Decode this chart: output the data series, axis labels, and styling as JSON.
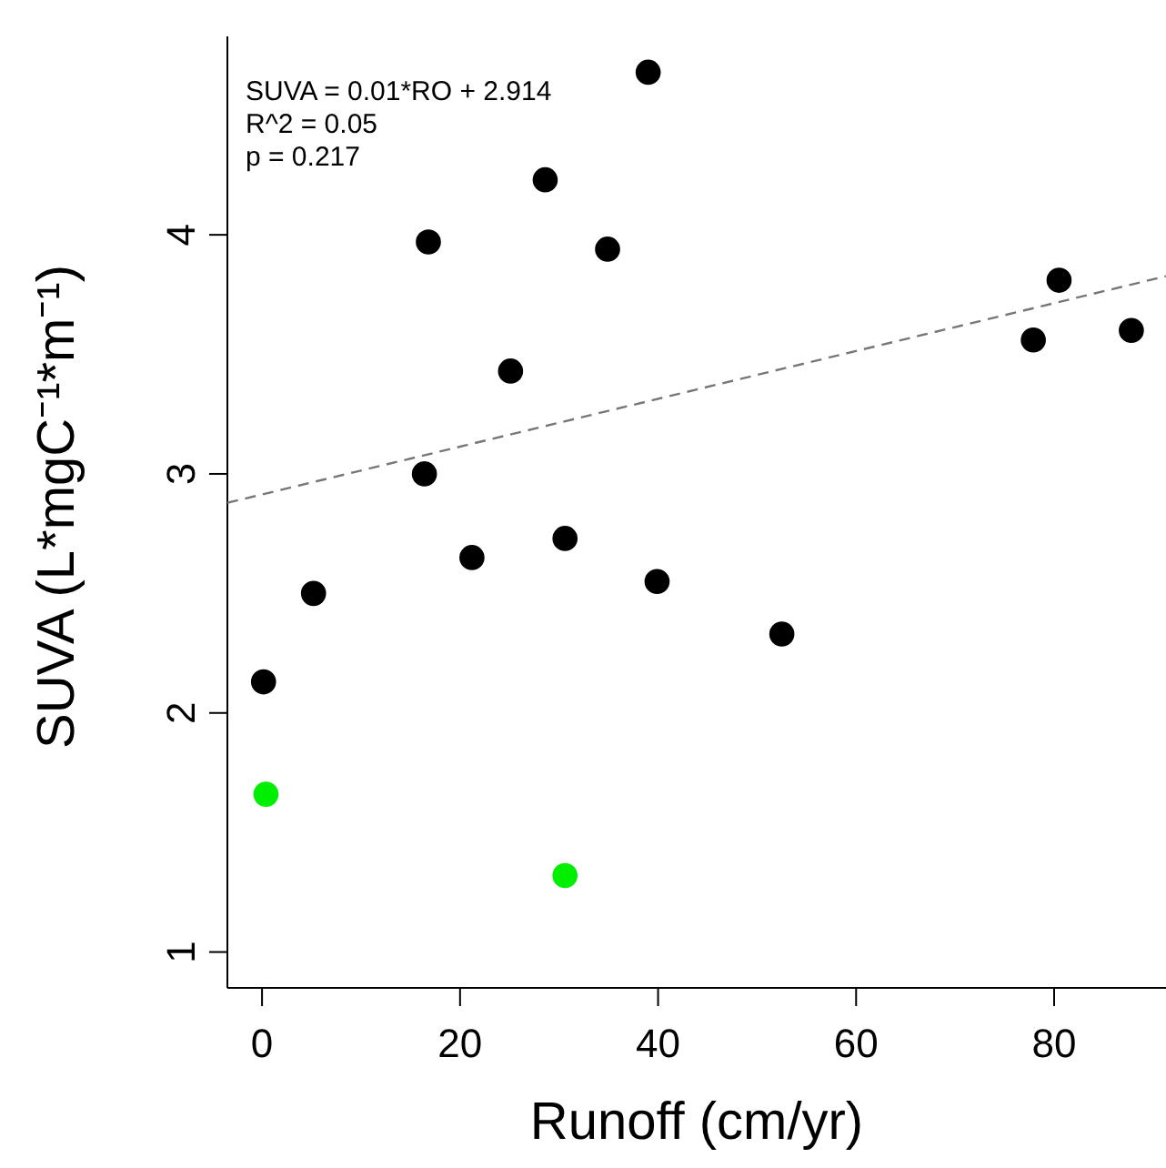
{
  "chart_data": {
    "type": "scatter",
    "xlabel": "Runoff (cm/yr)",
    "ylabel": "SUVA (L*mgC⁻¹*m⁻¹)",
    "annotations": [
      "SUVA = 0.01*RO + 2.914",
      "R^2 = 0.05",
      "p = 0.217"
    ],
    "xlim": [
      -3.5,
      91.3
    ],
    "xticks": [
      0,
      20,
      40,
      60,
      80
    ],
    "ylim": [
      0.85,
      4.83
    ],
    "yticks": [
      1,
      2,
      3,
      4
    ],
    "marker": "circle",
    "series": [
      {
        "color": "#000000",
        "x": [
          0.15,
          5.2,
          16.4,
          21.2,
          30.6,
          39.9,
          52.5,
          39.0,
          28.6,
          16.8,
          34.9,
          25.1,
          80.5,
          77.9,
          87.8
        ],
        "values": [
          2.13,
          2.5,
          3.0,
          2.65,
          2.73,
          2.55,
          2.33,
          4.68,
          4.23,
          3.97,
          3.94,
          3.43,
          3.81,
          3.56,
          3.6
        ]
      },
      {
        "color": "#00ee00",
        "x": [
          0.4,
          30.6
        ],
        "values": [
          1.66,
          1.32
        ]
      },
      {
        "type": "line",
        "color": "#777777",
        "line_style": "dashed",
        "marker": "none",
        "x": [
          -3.5,
          91.3
        ],
        "values": [
          2.879,
          3.827
        ]
      }
    ]
  }
}
